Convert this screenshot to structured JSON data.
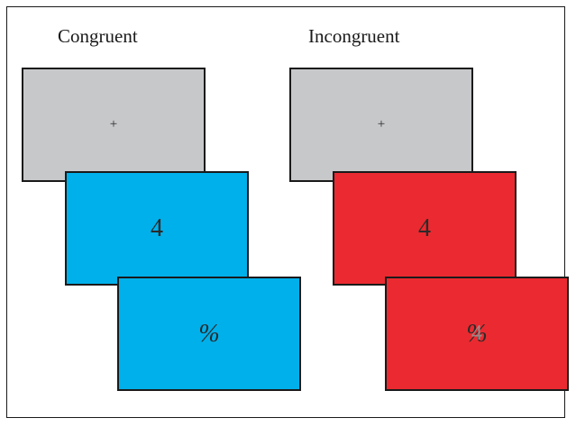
{
  "conditions": [
    {
      "label": "Congruent",
      "fixation": "+",
      "digit": "4",
      "symbol": "%",
      "color": "#00b0ea"
    },
    {
      "label": "Incongruent",
      "fixation": "+",
      "digit": "4",
      "symbol": "%",
      "overlay_digit": "4",
      "color": "#ea2a30"
    }
  ],
  "colors": {
    "fixation_gray": "#c7c8ca",
    "congruent_blue": "#00b0ea",
    "incongruent_red": "#ea2a30",
    "border": "#1a1a1a"
  }
}
